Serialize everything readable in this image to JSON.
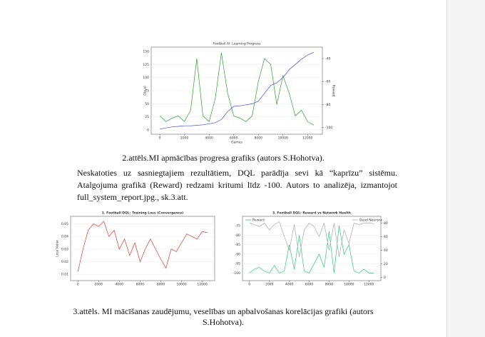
{
  "figure_1": {
    "title": "Football AI: Learning Progress",
    "xlabel": "Games",
    "ylabel": "Q(s,a)",
    "y2label": "Reward",
    "x": [
      0,
      500,
      1000,
      1500,
      2000,
      2500,
      3000,
      3500,
      4000,
      4500,
      5000,
      5500,
      6000,
      6500,
      7000,
      7500,
      8000,
      8500,
      9000,
      9500,
      10000,
      10500,
      11000,
      11500,
      12000,
      12500
    ],
    "xlim": [
      -700,
      13200
    ],
    "xticks": [
      0,
      2000,
      4000,
      6000,
      8000,
      10000,
      12000
    ],
    "ylim": [
      -8,
      158
    ],
    "yticks": [
      0,
      25,
      50,
      75,
      100,
      125,
      150
    ],
    "y2lim": [
      -106,
      -30
    ],
    "y2ticks": [
      -40,
      -60,
      -80,
      -100
    ],
    "series": [
      {
        "color": "#3b4fe0",
        "axis": "y",
        "values": [
          2,
          4,
          6,
          7,
          8,
          8,
          9,
          10,
          12,
          14,
          20,
          35,
          45,
          46,
          48,
          50,
          55,
          70,
          85,
          90,
          100,
          115,
          125,
          135,
          143,
          148
        ]
      },
      {
        "color": "#2ca02c",
        "axis": "y2",
        "values": [
          -90,
          -95,
          -92,
          -90,
          -95,
          -85,
          -40,
          -90,
          -95,
          -75,
          -35,
          -70,
          -90,
          -92,
          -95,
          -90,
          -60,
          -40,
          -45,
          -80,
          -55,
          -70,
          -90,
          -85,
          -95,
          -98
        ]
      }
    ]
  },
  "caption_1": "2.attēls.MI apmācības progresa grafiks (autors S.Hohotva).",
  "paragraph": [
    "Neskatoties uz sasniegtajiem rezultātiem, DQL parādīja sevi kā “kaprīzu” sistēmu.",
    "Atalgojuma grafikā (Reward) redzami kritumi līdz -100. Autors to analizēja, izmantojot",
    "full_system_report.jpg., sk.3.att."
  ],
  "figure_2": {
    "title": "1. Football DQL: Training Loss (Convergence)",
    "ylabel": "Loss Value",
    "x": [
      0,
      500,
      1000,
      1500,
      2000,
      2500,
      3000,
      3500,
      4000,
      4500,
      5000,
      5500,
      6000,
      6500,
      7000,
      7500,
      8000,
      8500,
      9000,
      9500,
      10000,
      10500,
      11000,
      11500,
      12000,
      12500
    ],
    "xlim": [
      -700,
      13200
    ],
    "xticks": [
      0,
      2000,
      4000,
      6000,
      8000,
      10000,
      12000
    ],
    "ylim": [
      0.005,
      0.056
    ],
    "yticks": [
      0.01,
      0.02,
      0.03,
      0.04,
      0.05
    ],
    "series": [
      {
        "color": "#e03a2a",
        "axis": "y",
        "values": [
          0.012,
          0.03,
          0.045,
          0.05,
          0.048,
          0.052,
          0.04,
          0.045,
          0.03,
          0.038,
          0.025,
          0.035,
          0.02,
          0.03,
          0.038,
          0.03,
          0.022,
          0.015,
          0.03,
          0.028,
          0.035,
          0.042,
          0.04,
          0.038,
          0.044,
          0.043
        ]
      }
    ]
  },
  "figure_3": {
    "title": "3. Football DQL: Reward vs Network Health",
    "x": [
      0,
      500,
      1000,
      1500,
      2000,
      2500,
      3000,
      3500,
      4000,
      4500,
      5000,
      5500,
      6000,
      6500,
      7000,
      7500,
      8000,
      8500,
      9000,
      9500,
      10000,
      10500,
      11000,
      11500,
      12000,
      12500
    ],
    "xlim": [
      -700,
      13200
    ],
    "xticks": [
      0,
      2000,
      4000,
      6000,
      8000,
      10000,
      12000
    ],
    "ylim": [
      -104,
      -70
    ],
    "yticks": [
      -75,
      -80,
      -85,
      -90,
      -95,
      -100
    ],
    "y2lim": [
      -5,
      90
    ],
    "y2ticks": [
      0,
      20,
      40,
      60,
      80
    ],
    "series": [
      {
        "name": "Reward",
        "color": "#2ecc71",
        "axis": "y",
        "values": [
          -100,
          -98,
          -97,
          -99,
          -100,
          -96,
          -100,
          -99,
          -85,
          -98,
          -80,
          -99,
          -100,
          -95,
          -90,
          -97,
          -78,
          -100,
          -75,
          -90,
          -85,
          -99,
          -100,
          -98,
          -100,
          -100
        ]
      },
      {
        "name": "Dead Neurons",
        "color": "#aaaaaa",
        "axis": "y2",
        "values": [
          80,
          78,
          75,
          80,
          70,
          78,
          82,
          60,
          40,
          78,
          30,
          70,
          80,
          75,
          60,
          80,
          40,
          80,
          30,
          70,
          50,
          80,
          78,
          80,
          80,
          79
        ]
      }
    ]
  },
  "caption_2": [
    "3.attēls. MI mācīšanas zaudējumu,  veselības un apbalvošanas korelācijas  grafiki (autors",
    "S.Hohotva)."
  ]
}
